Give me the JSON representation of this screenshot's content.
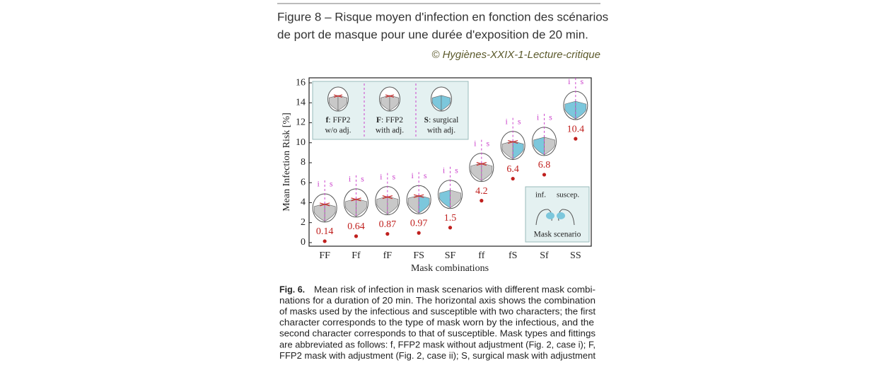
{
  "header": {
    "title_lines": [
      "Figure 8 – Risque moyen d'infection en fonction des scénarios",
      "de port de masque pour une durée d'exposition de 20 min."
    ],
    "credit": "© Hygiènes-XXIX-1-Lecture-critique"
  },
  "chart_data": {
    "type": "scatter",
    "x_label": "Mask combinations",
    "y_label": "Mean Infection Risk [%]",
    "categories": [
      "FF",
      "Ff",
      "fF",
      "FS",
      "SF",
      "ff",
      "fS",
      "Sf",
      "SS"
    ],
    "values": [
      0.14,
      0.64,
      0.87,
      0.97,
      1.5,
      4.2,
      6.4,
      6.8,
      10.4
    ],
    "color": "#c0201e",
    "ylim": [
      -0.36,
      16.5
    ],
    "yticks": [
      0,
      2,
      4,
      6,
      8,
      10,
      12,
      14,
      16
    ],
    "head_labels": [
      "i",
      "s"
    ],
    "legend": [
      [
        "f",
        ": FFP2",
        "w/o adj."
      ],
      [
        "F",
        ": FFP2",
        "with adj."
      ],
      [
        "S",
        ": surgical",
        "with adj."
      ]
    ],
    "inset": {
      "left": "inf.",
      "right": "suscep.",
      "caption": "Mask scenario"
    }
  },
  "caption": {
    "label": "Fig. 6.",
    "lines": [
      "Mean risk of infection in mask scenarios with different mask combi-",
      "nations for a duration of 20 min. The horizontal axis shows the combination",
      "of masks used by the infectious and susceptible with two characters; the first",
      "character corresponds to the type of mask worn by the infectious, and the",
      "second character corresponds to that of susceptible. Mask types and fittings",
      "are abbreviated as follows: f, FFP2 mask without adjustment (Fig. 2, case i); F,",
      "FFP2 mask with adjustment (Fig. 2, case ii); S, surgical mask with adjustment"
    ]
  }
}
